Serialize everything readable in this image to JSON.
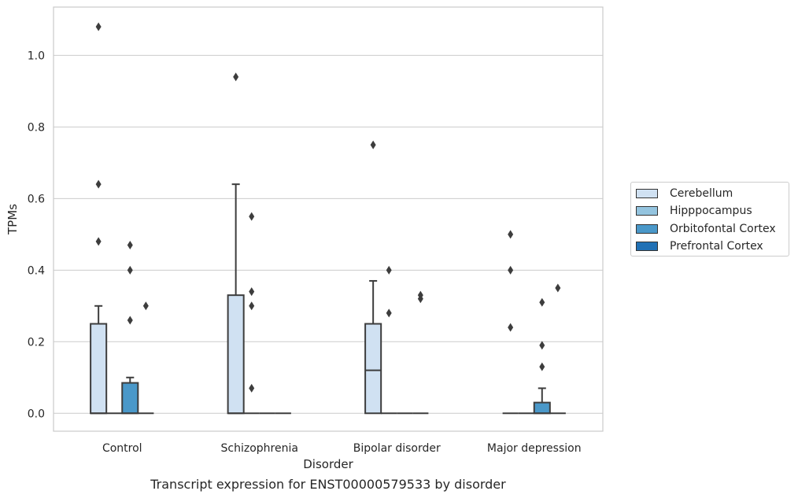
{
  "caption": "Transcript expression for ENST00000579533 by disorder",
  "chart_data": {
    "type": "box",
    "xlabel": "Disorder",
    "ylabel": "TPMs",
    "ylim": [
      -0.05,
      1.135
    ],
    "yticks": [
      "0.0",
      "0.2",
      "0.4",
      "0.6",
      "0.8",
      "1.0"
    ],
    "ytick_values": [
      0.0,
      0.2,
      0.4,
      0.6,
      0.8,
      1.0
    ],
    "grid": "horizontal",
    "legend_position": "right",
    "categories": [
      "Control",
      "Schizophrenia",
      "Bipolar disorder",
      "Major depression"
    ],
    "series": [
      {
        "name": "Cerebellum",
        "color": "#d0e1f2",
        "boxes": [
          {
            "q1": 0,
            "median": 0,
            "q3": 0.25,
            "whisker_low": 0,
            "whisker_high": 0.3,
            "outliers": [
              0.48,
              0.64,
              1.08
            ]
          },
          {
            "q1": 0,
            "median": 0,
            "q3": 0.33,
            "whisker_low": 0,
            "whisker_high": 0.64,
            "outliers": [
              0.94
            ]
          },
          {
            "q1": 0,
            "median": 0.12,
            "q3": 0.25,
            "whisker_low": 0,
            "whisker_high": 0.37,
            "outliers": [
              0.75
            ]
          },
          {
            "q1": 0,
            "median": 0,
            "q3": 0,
            "whisker_low": 0,
            "whisker_high": 0,
            "outliers": [
              0.24,
              0.4,
              0.5
            ]
          }
        ]
      },
      {
        "name": "Hipppocampus",
        "color": "#94c4df",
        "boxes": [
          {
            "q1": 0,
            "median": 0,
            "q3": 0,
            "whisker_low": 0,
            "whisker_high": 0,
            "outliers": []
          },
          {
            "q1": 0,
            "median": 0,
            "q3": 0,
            "whisker_low": 0,
            "whisker_high": 0,
            "outliers": [
              0.07,
              0.3,
              0.34,
              0.55
            ]
          },
          {
            "q1": 0,
            "median": 0,
            "q3": 0,
            "whisker_low": 0,
            "whisker_high": 0,
            "outliers": [
              0.28,
              0.4
            ]
          },
          {
            "q1": 0,
            "median": 0,
            "q3": 0,
            "whisker_low": 0,
            "whisker_high": 0,
            "outliers": []
          }
        ]
      },
      {
        "name": "Orbitofontal Cortex",
        "color": "#4a98c9",
        "boxes": [
          {
            "q1": 0,
            "median": 0,
            "q3": 0.085,
            "whisker_low": 0,
            "whisker_high": 0.1,
            "outliers": [
              0.26,
              0.4,
              0.47
            ]
          },
          {
            "q1": 0,
            "median": 0,
            "q3": 0,
            "whisker_low": 0,
            "whisker_high": 0,
            "outliers": []
          },
          {
            "q1": 0,
            "median": 0,
            "q3": 0,
            "whisker_low": 0,
            "whisker_high": 0,
            "outliers": []
          },
          {
            "q1": 0,
            "median": 0,
            "q3": 0.03,
            "whisker_low": 0,
            "whisker_high": 0.07,
            "outliers": [
              0.13,
              0.19,
              0.31
            ]
          }
        ]
      },
      {
        "name": "Prefrontal Cortex",
        "color": "#2171b5",
        "boxes": [
          {
            "q1": 0,
            "median": 0,
            "q3": 0,
            "whisker_low": 0,
            "whisker_high": 0,
            "outliers": [
              0.3
            ]
          },
          {
            "q1": 0,
            "median": 0,
            "q3": 0,
            "whisker_low": 0,
            "whisker_high": 0,
            "outliers": []
          },
          {
            "q1": 0,
            "median": 0,
            "q3": 0,
            "whisker_low": 0,
            "whisker_high": 0,
            "outliers": [
              0.32,
              0.33
            ]
          },
          {
            "q1": 0,
            "median": 0,
            "q3": 0,
            "whisker_low": 0,
            "whisker_high": 0,
            "outliers": [
              0.35
            ]
          }
        ]
      }
    ]
  }
}
